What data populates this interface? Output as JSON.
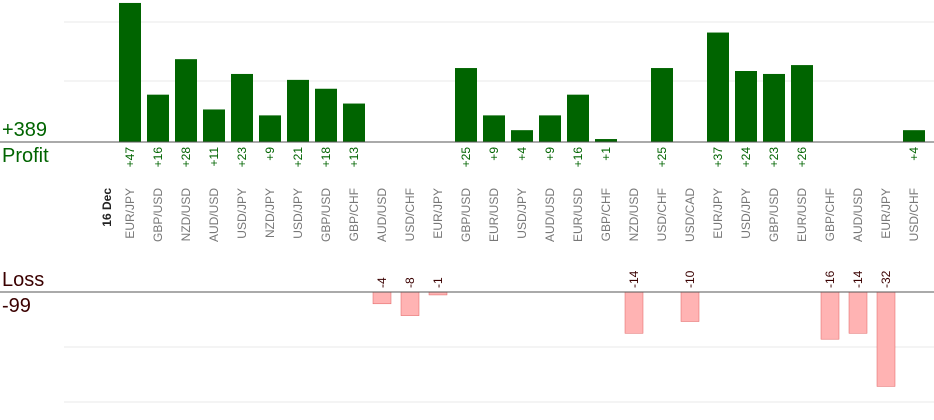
{
  "summary": {
    "profit_total": "+389",
    "profit_label": "Profit",
    "loss_label": "Loss",
    "loss_total": "-99"
  },
  "colors": {
    "profit_bar": "#006400",
    "loss_bar": "#ffb3b3",
    "loss_bar_border": "#e06060",
    "profit_text": "#006400",
    "loss_text": "#3a0000"
  },
  "chart_data": {
    "type": "bar",
    "date_label": "16 Dec",
    "categories": [
      "EUR/JPY",
      "GBP/USD",
      "NZD/USD",
      "AUD/USD",
      "USD/JPY",
      "NZD/JPY",
      "USD/JPY",
      "GBP/USD",
      "GBP/CHF",
      "AUD/USD",
      "USD/CHF",
      "EUR/JPY",
      "GBP/USD",
      "EUR/USD",
      "USD/JPY",
      "AUD/USD",
      "EUR/USD",
      "GBP/CHF",
      "NZD/USD",
      "USD/CHF",
      "USD/CAD",
      "EUR/JPY",
      "USD/JPY",
      "GBP/USD",
      "EUR/USD",
      "GBP/CHF",
      "AUD/USD",
      "EUR/JPY",
      "USD/CHF"
    ],
    "values": [
      47,
      16,
      28,
      11,
      23,
      9,
      21,
      18,
      13,
      -4,
      -8,
      -1,
      25,
      9,
      4,
      9,
      16,
      1,
      -14,
      25,
      -10,
      37,
      24,
      23,
      26,
      -16,
      -14,
      -32,
      4
    ],
    "labels": [
      "+47",
      "+16",
      "+28",
      "+11",
      "+23",
      "+9",
      "+21",
      "+18",
      "+13",
      "-4",
      "-8",
      "-1",
      "+25",
      "+9",
      "+4",
      "+9",
      "+16",
      "+1",
      "-14",
      "+25",
      "-10",
      "+37",
      "+24",
      "+23",
      "+26",
      "-16",
      "-14",
      "-32",
      "+4"
    ],
    "profit_axis_max": 24,
    "loss_axis_max": 40,
    "grid": true
  }
}
